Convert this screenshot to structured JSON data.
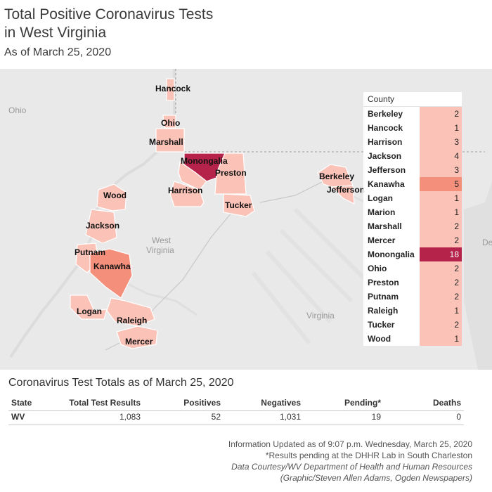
{
  "header": {
    "title_line1": "Total Positive Coronavirus Tests",
    "title_line2": "in West Virginia",
    "subtitle": "As of March 25, 2020"
  },
  "map": {
    "region_labels": {
      "ohio": "Ohio",
      "west_virginia_1": "West",
      "west_virginia_2": "Virginia",
      "virginia": "Virginia",
      "de": "De"
    },
    "county_labels": {
      "hancock": "Hancock",
      "ohio": "Ohio",
      "marshall": "Marshall",
      "monongalia": "Monongalia",
      "preston": "Preston",
      "harrison": "Harrison",
      "tucker": "Tucker",
      "berkeley": "Berkeley",
      "jefferson": "Jefferson",
      "wood": "Wood",
      "jackson": "Jackson",
      "putnam": "Putnam",
      "kanawha": "Kanawha",
      "logan": "Logan",
      "raleigh": "Raleigh",
      "mercer": "Mercer"
    },
    "colors": {
      "low": "#fbc3b8",
      "mid": "#f48f7c",
      "high": "#b5234a",
      "water": "#e0e0e0",
      "land": "#e9e9e9"
    }
  },
  "chart_data": {
    "type": "table",
    "column_header": "County",
    "categories": [
      "Berkeley",
      "Hancock",
      "Harrison",
      "Jackson",
      "Jefferson",
      "Kanawha",
      "Logan",
      "Marion",
      "Marshall",
      "Mercer",
      "Monongalia",
      "Ohio",
      "Preston",
      "Putnam",
      "Raleigh",
      "Tucker",
      "Wood"
    ],
    "values": [
      2,
      1,
      3,
      4,
      3,
      5,
      1,
      1,
      2,
      2,
      18,
      2,
      2,
      2,
      1,
      2,
      1
    ]
  },
  "totals": {
    "title": "Coronavirus Test Totals as of March 25, 2020",
    "headers": {
      "state": "State",
      "total": "Total Test Results",
      "positives": "Positives",
      "negatives": "Negatives",
      "pending": "Pending*",
      "deaths": "Deaths"
    },
    "row": {
      "state": "WV",
      "total": "1,083",
      "positives": "52",
      "negatives": "1,031",
      "pending": "19",
      "deaths": "0"
    }
  },
  "notes": {
    "updated": "Information Updated as of 9:07 p.m. Wednesday, March 25, 2020",
    "pending": "*Results pending at the DHHR Lab in South Charleston",
    "courtesy": "Data Courtesy/WV Department of Health and Human Resources",
    "credit": "(Graphic/Steven Allen Adams, Ogden Newspapers)"
  }
}
